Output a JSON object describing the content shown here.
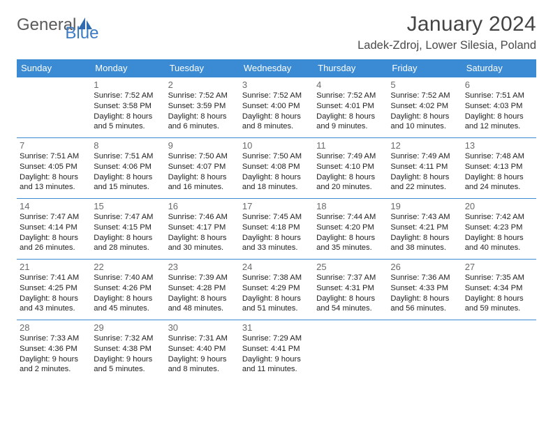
{
  "logo": {
    "word1": "General",
    "word2": "Blue"
  },
  "title": "January 2024",
  "location": "Ladek-Zdroj, Lower Silesia, Poland",
  "colors": {
    "header_bg": "#3b8bd4",
    "header_fg": "#ffffff",
    "divider": "#3b8bd4",
    "text": "#222222",
    "daynum": "#6a6a6a",
    "title": "#444444",
    "logo_gray": "#5a5a5a",
    "logo_blue": "#3b7bc4"
  },
  "typography": {
    "title_fontsize": 30,
    "location_fontsize": 16.5,
    "header_fontsize": 13,
    "daynum_fontsize": 13,
    "info_fontsize": 11.2
  },
  "weekdays": [
    "Sunday",
    "Monday",
    "Tuesday",
    "Wednesday",
    "Thursday",
    "Friday",
    "Saturday"
  ],
  "weeks": [
    [
      null,
      {
        "n": "1",
        "sr": "7:52 AM",
        "ss": "3:58 PM",
        "dl": "8 hours and 5 minutes."
      },
      {
        "n": "2",
        "sr": "7:52 AM",
        "ss": "3:59 PM",
        "dl": "8 hours and 6 minutes."
      },
      {
        "n": "3",
        "sr": "7:52 AM",
        "ss": "4:00 PM",
        "dl": "8 hours and 8 minutes."
      },
      {
        "n": "4",
        "sr": "7:52 AM",
        "ss": "4:01 PM",
        "dl": "8 hours and 9 minutes."
      },
      {
        "n": "5",
        "sr": "7:52 AM",
        "ss": "4:02 PM",
        "dl": "8 hours and 10 minutes."
      },
      {
        "n": "6",
        "sr": "7:51 AM",
        "ss": "4:03 PM",
        "dl": "8 hours and 12 minutes."
      }
    ],
    [
      {
        "n": "7",
        "sr": "7:51 AM",
        "ss": "4:05 PM",
        "dl": "8 hours and 13 minutes."
      },
      {
        "n": "8",
        "sr": "7:51 AM",
        "ss": "4:06 PM",
        "dl": "8 hours and 15 minutes."
      },
      {
        "n": "9",
        "sr": "7:50 AM",
        "ss": "4:07 PM",
        "dl": "8 hours and 16 minutes."
      },
      {
        "n": "10",
        "sr": "7:50 AM",
        "ss": "4:08 PM",
        "dl": "8 hours and 18 minutes."
      },
      {
        "n": "11",
        "sr": "7:49 AM",
        "ss": "4:10 PM",
        "dl": "8 hours and 20 minutes."
      },
      {
        "n": "12",
        "sr": "7:49 AM",
        "ss": "4:11 PM",
        "dl": "8 hours and 22 minutes."
      },
      {
        "n": "13",
        "sr": "7:48 AM",
        "ss": "4:13 PM",
        "dl": "8 hours and 24 minutes."
      }
    ],
    [
      {
        "n": "14",
        "sr": "7:47 AM",
        "ss": "4:14 PM",
        "dl": "8 hours and 26 minutes."
      },
      {
        "n": "15",
        "sr": "7:47 AM",
        "ss": "4:15 PM",
        "dl": "8 hours and 28 minutes."
      },
      {
        "n": "16",
        "sr": "7:46 AM",
        "ss": "4:17 PM",
        "dl": "8 hours and 30 minutes."
      },
      {
        "n": "17",
        "sr": "7:45 AM",
        "ss": "4:18 PM",
        "dl": "8 hours and 33 minutes."
      },
      {
        "n": "18",
        "sr": "7:44 AM",
        "ss": "4:20 PM",
        "dl": "8 hours and 35 minutes."
      },
      {
        "n": "19",
        "sr": "7:43 AM",
        "ss": "4:21 PM",
        "dl": "8 hours and 38 minutes."
      },
      {
        "n": "20",
        "sr": "7:42 AM",
        "ss": "4:23 PM",
        "dl": "8 hours and 40 minutes."
      }
    ],
    [
      {
        "n": "21",
        "sr": "7:41 AM",
        "ss": "4:25 PM",
        "dl": "8 hours and 43 minutes."
      },
      {
        "n": "22",
        "sr": "7:40 AM",
        "ss": "4:26 PM",
        "dl": "8 hours and 45 minutes."
      },
      {
        "n": "23",
        "sr": "7:39 AM",
        "ss": "4:28 PM",
        "dl": "8 hours and 48 minutes."
      },
      {
        "n": "24",
        "sr": "7:38 AM",
        "ss": "4:29 PM",
        "dl": "8 hours and 51 minutes."
      },
      {
        "n": "25",
        "sr": "7:37 AM",
        "ss": "4:31 PM",
        "dl": "8 hours and 54 minutes."
      },
      {
        "n": "26",
        "sr": "7:36 AM",
        "ss": "4:33 PM",
        "dl": "8 hours and 56 minutes."
      },
      {
        "n": "27",
        "sr": "7:35 AM",
        "ss": "4:34 PM",
        "dl": "8 hours and 59 minutes."
      }
    ],
    [
      {
        "n": "28",
        "sr": "7:33 AM",
        "ss": "4:36 PM",
        "dl": "9 hours and 2 minutes."
      },
      {
        "n": "29",
        "sr": "7:32 AM",
        "ss": "4:38 PM",
        "dl": "9 hours and 5 minutes."
      },
      {
        "n": "30",
        "sr": "7:31 AM",
        "ss": "4:40 PM",
        "dl": "9 hours and 8 minutes."
      },
      {
        "n": "31",
        "sr": "7:29 AM",
        "ss": "4:41 PM",
        "dl": "9 hours and 11 minutes."
      },
      null,
      null,
      null
    ]
  ],
  "labels": {
    "sunrise": "Sunrise: ",
    "sunset": "Sunset: ",
    "daylight": "Daylight: "
  }
}
